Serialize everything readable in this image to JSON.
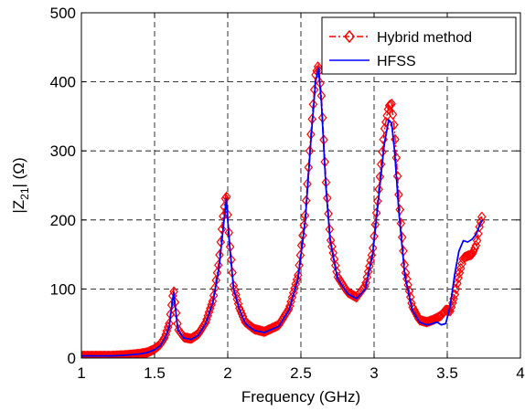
{
  "chart_data": {
    "type": "line",
    "title": "",
    "xlabel": "Frequency (GHz)",
    "ylabel": "|Z21| (Ω)",
    "ylabel_parts": {
      "pre": "|Z",
      "sub": "21",
      "post": "| (Ω)"
    },
    "xlim": [
      1,
      4
    ],
    "ylim": [
      0,
      500
    ],
    "xticks": [
      1,
      1.5,
      2,
      2.5,
      3,
      3.5,
      4
    ],
    "xtick_labels": [
      "1",
      "1.5",
      "2",
      "2.5",
      "3",
      "3.5",
      "4"
    ],
    "yticks": [
      0,
      100,
      200,
      300,
      400,
      500
    ],
    "ytick_labels": [
      "0",
      "100",
      "200",
      "300",
      "400",
      "500"
    ],
    "grid": true,
    "legend_position": "top-right",
    "series": [
      {
        "name": "Hybrid method",
        "color": "#ff0000",
        "line_style": "dash-dot",
        "marker": "diamond",
        "x": [
          1.0,
          1.1,
          1.2,
          1.3,
          1.4,
          1.45,
          1.5,
          1.54,
          1.57,
          1.6,
          1.63,
          1.66,
          1.7,
          1.75,
          1.8,
          1.85,
          1.9,
          1.94,
          1.97,
          1.99,
          2.01,
          2.04,
          2.08,
          2.12,
          2.18,
          2.25,
          2.35,
          2.42,
          2.48,
          2.53,
          2.57,
          2.6,
          2.62,
          2.64,
          2.67,
          2.7,
          2.75,
          2.82,
          2.88,
          2.94,
          2.99,
          3.03,
          3.07,
          3.1,
          3.12,
          3.14,
          3.17,
          3.21,
          3.26,
          3.31,
          3.36,
          3.4,
          3.43,
          3.46,
          3.49,
          3.52,
          3.55,
          3.58,
          3.61,
          3.64,
          3.67,
          3.7,
          3.72,
          3.74
        ],
        "y": [
          3,
          3,
          3,
          4,
          6,
          8,
          13,
          20,
          30,
          50,
          100,
          42,
          30,
          28,
          35,
          52,
          85,
          140,
          210,
          240,
          175,
          105,
          72,
          52,
          42,
          38,
          48,
          72,
          120,
          210,
          330,
          410,
          425,
          380,
          260,
          175,
          118,
          95,
          88,
          105,
          155,
          240,
          330,
          365,
          368,
          330,
          230,
          130,
          75,
          55,
          52,
          55,
          58,
          62,
          70,
          68,
          90,
          120,
          145,
          148,
          150,
          165,
          190,
          208
        ]
      },
      {
        "name": "HFSS",
        "color": "#0000ff",
        "line_style": "solid",
        "marker": "none",
        "x": [
          1.0,
          1.1,
          1.2,
          1.3,
          1.4,
          1.45,
          1.5,
          1.54,
          1.57,
          1.6,
          1.63,
          1.66,
          1.7,
          1.75,
          1.8,
          1.85,
          1.9,
          1.94,
          1.97,
          1.99,
          2.01,
          2.04,
          2.08,
          2.12,
          2.18,
          2.25,
          2.35,
          2.42,
          2.48,
          2.53,
          2.57,
          2.6,
          2.62,
          2.64,
          2.67,
          2.7,
          2.75,
          2.82,
          2.88,
          2.94,
          2.99,
          3.03,
          3.07,
          3.1,
          3.12,
          3.14,
          3.17,
          3.21,
          3.26,
          3.31,
          3.36,
          3.4,
          3.43,
          3.46,
          3.49,
          3.52,
          3.55,
          3.58,
          3.61,
          3.64,
          3.67,
          3.7,
          3.72,
          3.74
        ],
        "y": [
          3,
          3,
          3,
          4,
          6,
          8,
          12,
          18,
          28,
          45,
          95,
          40,
          29,
          27,
          33,
          50,
          82,
          130,
          190,
          230,
          170,
          100,
          70,
          50,
          40,
          37,
          46,
          70,
          115,
          200,
          320,
          400,
          420,
          370,
          250,
          170,
          115,
          93,
          86,
          100,
          150,
          230,
          310,
          345,
          340,
          300,
          210,
          120,
          70,
          52,
          48,
          50,
          52,
          48,
          50,
          75,
          120,
          155,
          170,
          168,
          172,
          180,
          192,
          200
        ]
      }
    ]
  }
}
